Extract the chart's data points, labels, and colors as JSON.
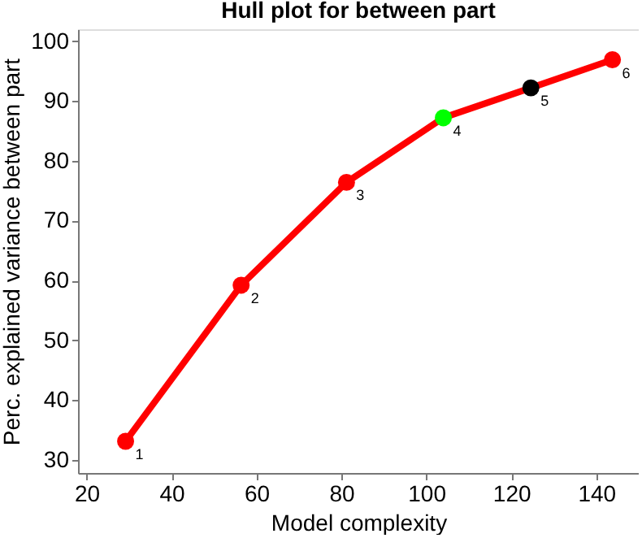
{
  "chart_data": {
    "type": "line",
    "title": "Hull plot for between part",
    "xlabel": "Model complexity",
    "ylabel": "Perc. explained variance between part",
    "x": [
      29.2,
      56.4,
      81.2,
      104,
      124.6,
      143.8
    ],
    "series": [
      {
        "color": "#ff0000",
        "values": [
          33.1,
          59.2,
          76.4,
          87.2,
          92.2,
          96.9
        ],
        "colors": [
          "#ff0000",
          "#ff0000",
          "#ff0000",
          "#00ff00",
          "#000000",
          "#ff0000"
        ]
      }
    ],
    "xlim": [
      18,
      150
    ],
    "xticks": [
      20,
      40,
      60,
      80,
      100,
      120,
      140
    ],
    "ylim": [
      27.8,
      102
    ],
    "yticks": [
      30,
      40,
      50,
      60,
      70,
      80,
      90,
      100
    ],
    "marker": "circle",
    "line_style": "solid",
    "grid": false,
    "annotations": [
      {
        "text": "1",
        "x": 29.2,
        "y": 33.1
      },
      {
        "text": "2",
        "x": 56.4,
        "y": 59.2
      },
      {
        "text": "3",
        "x": 81.2,
        "y": 76.4
      },
      {
        "text": "4",
        "x": 104,
        "y": 87.2
      },
      {
        "text": "5",
        "x": 124.6,
        "y": 92.2
      },
      {
        "text": "6",
        "x": 143.8,
        "y": 96.9
      }
    ]
  }
}
